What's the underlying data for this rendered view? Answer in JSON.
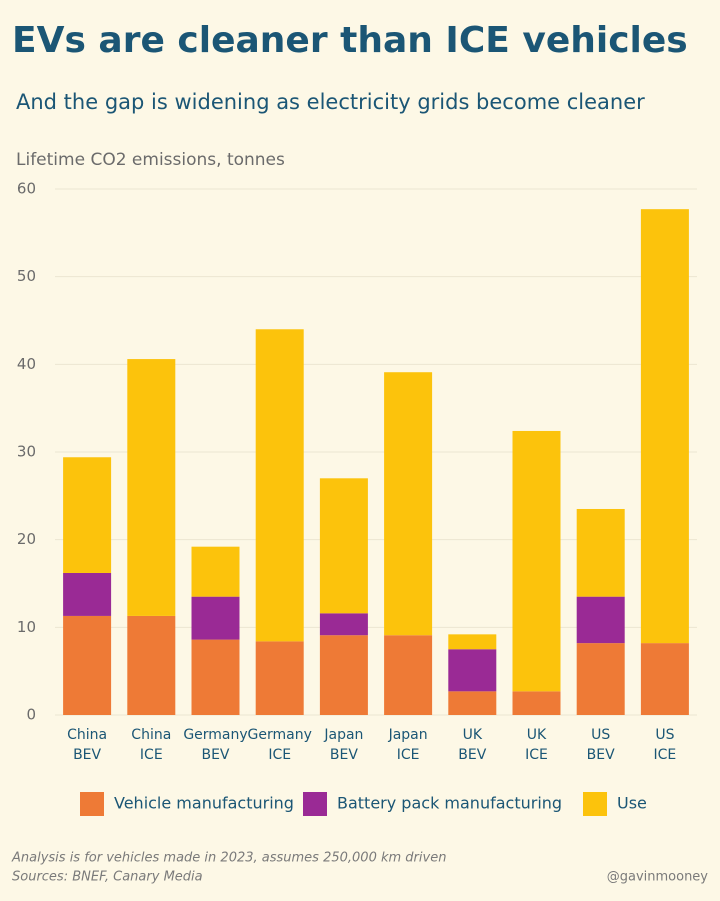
{
  "chart_data": {
    "type": "stacked_bar",
    "title": "EVs are cleaner than ICE vehicles",
    "subtitle": "And the gap is widening as electricity grids become cleaner",
    "y_axis_title": "Lifetime CO2 emissions, tonnes",
    "categories": [
      [
        "China",
        "BEV"
      ],
      [
        "China",
        "ICE"
      ],
      [
        "Germany",
        "BEV"
      ],
      [
        "Germany",
        "ICE"
      ],
      [
        "Japan",
        "BEV"
      ],
      [
        "Japan",
        "ICE"
      ],
      [
        "UK",
        "BEV"
      ],
      [
        "UK",
        "ICE"
      ],
      [
        "US",
        "BEV"
      ],
      [
        "US",
        "ICE"
      ]
    ],
    "series": [
      {
        "name": "Vehicle manufacturing",
        "color": "#ee7a36",
        "values": [
          11.3,
          11.3,
          8.6,
          8.4,
          9.1,
          9.1,
          2.7,
          2.7,
          8.2,
          8.2
        ]
      },
      {
        "name": "Battery pack manufacturing",
        "color": "#9a2a95",
        "values": [
          4.9,
          0,
          4.9,
          0,
          2.5,
          0,
          4.8,
          0,
          5.3,
          0
        ]
      },
      {
        "name": "Use",
        "color": "#fcc30c",
        "values": [
          13.2,
          29.3,
          5.7,
          35.6,
          15.4,
          30.0,
          1.7,
          29.7,
          10.0,
          49.5
        ]
      }
    ],
    "ylim": [
      0,
      60
    ],
    "yticks": [
      0,
      10,
      20,
      30,
      40,
      50,
      60
    ],
    "grid": true,
    "notes": [
      "Analysis is for vehicles made in 2023, assumes 250,000 km driven",
      "Sources: BNEF, Canary Media"
    ],
    "credit": "@gavinmooney"
  }
}
